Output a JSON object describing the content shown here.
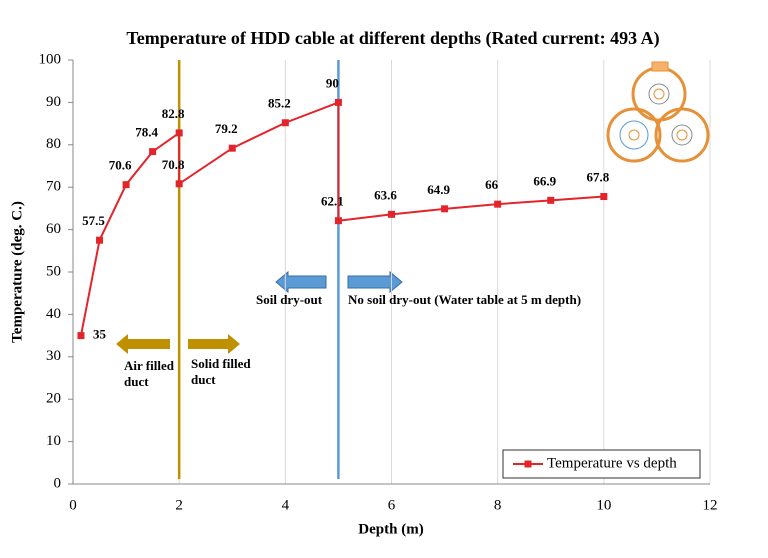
{
  "chart_data": {
    "type": "line",
    "title": "Temperature of HDD cable at different depths (Rated current: 493 A)",
    "x_label": "Depth (m)",
    "y_label": "Temperature (deg. C.)",
    "x": [
      0.15,
      0.5,
      1,
      1.5,
      2,
      2,
      3,
      4,
      5,
      5,
      6,
      7,
      8,
      9,
      10
    ],
    "series": [
      {
        "name": "Temperature vs depth",
        "color": "#e3242b",
        "values": [
          35,
          57.5,
          70.6,
          78.4,
          82.8,
          70.8,
          79.2,
          85.2,
          90,
          62.1,
          63.6,
          64.9,
          66,
          66.9,
          67.8
        ]
      }
    ],
    "xlim": [
      0,
      12
    ],
    "xticks": [
      0,
      2,
      4,
      6,
      8,
      10,
      12
    ],
    "ylim": [
      0,
      100
    ],
    "yticks": [
      0,
      10,
      20,
      30,
      40,
      50,
      60,
      70,
      80,
      90,
      100
    ],
    "grid": true,
    "legend": "lower right",
    "vlines": [
      {
        "x": 2,
        "color": "#bf9000"
      },
      {
        "x": 5,
        "color": "#5b9bd5"
      }
    ],
    "annotations": [
      "Soil dry-out",
      "No soil dry-out (Water table at 5 m depth)",
      "Air filled duct",
      "Solid filled duct"
    ]
  }
}
